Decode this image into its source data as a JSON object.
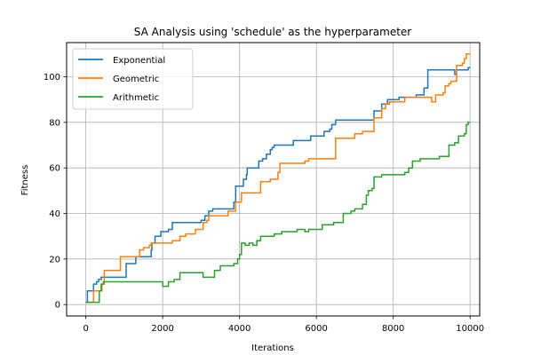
{
  "chart_data": {
    "type": "line",
    "title": "SA Analysis using 'schedule' as the hyperparameter",
    "xlabel": "Iterations",
    "ylabel": "Fitness",
    "xlim": [
      -500,
      10250
    ],
    "ylim": [
      -5,
      115
    ],
    "xticks": [
      0,
      2000,
      4000,
      6000,
      8000,
      10000
    ],
    "yticks": [
      0,
      20,
      40,
      60,
      80,
      100
    ],
    "grid": true,
    "legend_position": "top-left",
    "series": [
      {
        "name": "Exponential",
        "color": "#1f77b4",
        "step": true,
        "points": [
          [
            0,
            1
          ],
          [
            40,
            6
          ],
          [
            200,
            6
          ],
          [
            200,
            9
          ],
          [
            280,
            10
          ],
          [
            330,
            11
          ],
          [
            400,
            12
          ],
          [
            900,
            12
          ],
          [
            1050,
            18
          ],
          [
            1300,
            18
          ],
          [
            1300,
            21
          ],
          [
            1650,
            21
          ],
          [
            1700,
            24
          ],
          [
            1720,
            27
          ],
          [
            1800,
            30
          ],
          [
            1950,
            32
          ],
          [
            2150,
            33
          ],
          [
            2250,
            36
          ],
          [
            2800,
            36
          ],
          [
            3000,
            37
          ],
          [
            3100,
            39
          ],
          [
            3200,
            41
          ],
          [
            3300,
            42
          ],
          [
            3700,
            42
          ],
          [
            3850,
            45
          ],
          [
            3900,
            48
          ],
          [
            3900,
            52
          ],
          [
            4050,
            52
          ],
          [
            4100,
            55
          ],
          [
            4180,
            57
          ],
          [
            4200,
            60
          ],
          [
            4400,
            60
          ],
          [
            4500,
            63
          ],
          [
            4600,
            64
          ],
          [
            4700,
            66
          ],
          [
            4800,
            68
          ],
          [
            4850,
            69
          ],
          [
            4900,
            70
          ],
          [
            5350,
            70
          ],
          [
            5400,
            72
          ],
          [
            5800,
            72
          ],
          [
            5850,
            74
          ],
          [
            6150,
            74
          ],
          [
            6200,
            76
          ],
          [
            6350,
            77
          ],
          [
            6400,
            79
          ],
          [
            6500,
            81
          ],
          [
            7450,
            81
          ],
          [
            7500,
            85
          ],
          [
            7700,
            88
          ],
          [
            7850,
            90
          ],
          [
            8150,
            91
          ],
          [
            8600,
            92
          ],
          [
            8800,
            95
          ],
          [
            8900,
            103
          ],
          [
            9550,
            103
          ],
          [
            9600,
            101
          ],
          [
            9650,
            103
          ],
          [
            9950,
            104
          ],
          [
            10000,
            104
          ]
        ]
      },
      {
        "name": "Geometric",
        "color": "#ff7f0e",
        "step": true,
        "points": [
          [
            0,
            1
          ],
          [
            200,
            1
          ],
          [
            200,
            6
          ],
          [
            420,
            9
          ],
          [
            480,
            15
          ],
          [
            900,
            15
          ],
          [
            900,
            21
          ],
          [
            1350,
            21
          ],
          [
            1400,
            24
          ],
          [
            1500,
            25
          ],
          [
            1650,
            26
          ],
          [
            1700,
            27
          ],
          [
            2200,
            27
          ],
          [
            2250,
            28
          ],
          [
            2450,
            30
          ],
          [
            2600,
            31
          ],
          [
            2850,
            33
          ],
          [
            3050,
            36
          ],
          [
            3150,
            37
          ],
          [
            3200,
            39
          ],
          [
            3650,
            39
          ],
          [
            3700,
            41
          ],
          [
            3900,
            43
          ],
          [
            3900,
            45
          ],
          [
            4000,
            45
          ],
          [
            4050,
            49
          ],
          [
            4500,
            49
          ],
          [
            4550,
            54
          ],
          [
            4800,
            55
          ],
          [
            5000,
            58
          ],
          [
            5050,
            62
          ],
          [
            5650,
            62
          ],
          [
            5700,
            63
          ],
          [
            5800,
            64
          ],
          [
            6450,
            64
          ],
          [
            6500,
            73
          ],
          [
            6950,
            73
          ],
          [
            7000,
            75
          ],
          [
            7150,
            75
          ],
          [
            7200,
            76
          ],
          [
            7450,
            76
          ],
          [
            7500,
            82
          ],
          [
            7650,
            82
          ],
          [
            7700,
            86
          ],
          [
            7800,
            88
          ],
          [
            7900,
            89
          ],
          [
            8200,
            89
          ],
          [
            8300,
            91
          ],
          [
            8700,
            91
          ],
          [
            9000,
            89
          ],
          [
            9100,
            92
          ],
          [
            9300,
            93
          ],
          [
            9350,
            96
          ],
          [
            9450,
            97
          ],
          [
            9500,
            98
          ],
          [
            9600,
            98
          ],
          [
            9650,
            105
          ],
          [
            9800,
            106
          ],
          [
            9850,
            108
          ],
          [
            9900,
            110
          ],
          [
            10000,
            110
          ]
        ]
      },
      {
        "name": "Arithmetic",
        "color": "#2ca02c",
        "step": true,
        "points": [
          [
            0,
            1
          ],
          [
            350,
            1
          ],
          [
            350,
            6
          ],
          [
            400,
            9
          ],
          [
            460,
            10
          ],
          [
            500,
            10
          ],
          [
            2000,
            10
          ],
          [
            2000,
            8
          ],
          [
            2150,
            8
          ],
          [
            2150,
            10
          ],
          [
            2300,
            11
          ],
          [
            2450,
            14
          ],
          [
            3000,
            14
          ],
          [
            3050,
            12
          ],
          [
            3300,
            12
          ],
          [
            3350,
            15
          ],
          [
            3500,
            17
          ],
          [
            3750,
            17
          ],
          [
            3850,
            18
          ],
          [
            3950,
            20
          ],
          [
            4000,
            22
          ],
          [
            4050,
            27
          ],
          [
            4150,
            26
          ],
          [
            4250,
            27
          ],
          [
            4350,
            26
          ],
          [
            4450,
            28
          ],
          [
            4550,
            30
          ],
          [
            4900,
            31
          ],
          [
            5050,
            31
          ],
          [
            5100,
            32
          ],
          [
            5400,
            32
          ],
          [
            5500,
            33
          ],
          [
            5700,
            32
          ],
          [
            5800,
            33
          ],
          [
            6100,
            33
          ],
          [
            6150,
            35
          ],
          [
            6400,
            35
          ],
          [
            6450,
            36
          ],
          [
            6650,
            36
          ],
          [
            6700,
            40
          ],
          [
            6900,
            41
          ],
          [
            7000,
            42
          ],
          [
            7200,
            44
          ],
          [
            7300,
            48
          ],
          [
            7350,
            50
          ],
          [
            7450,
            51
          ],
          [
            7500,
            56
          ],
          [
            7700,
            57
          ],
          [
            8050,
            57
          ],
          [
            8300,
            58
          ],
          [
            8400,
            60
          ],
          [
            8500,
            63
          ],
          [
            8700,
            64
          ],
          [
            9150,
            64
          ],
          [
            9200,
            65
          ],
          [
            9400,
            65
          ],
          [
            9450,
            70
          ],
          [
            9600,
            71
          ],
          [
            9700,
            74
          ],
          [
            9850,
            75
          ],
          [
            9900,
            79
          ],
          [
            9950,
            80
          ],
          [
            10000,
            80
          ]
        ]
      }
    ]
  }
}
